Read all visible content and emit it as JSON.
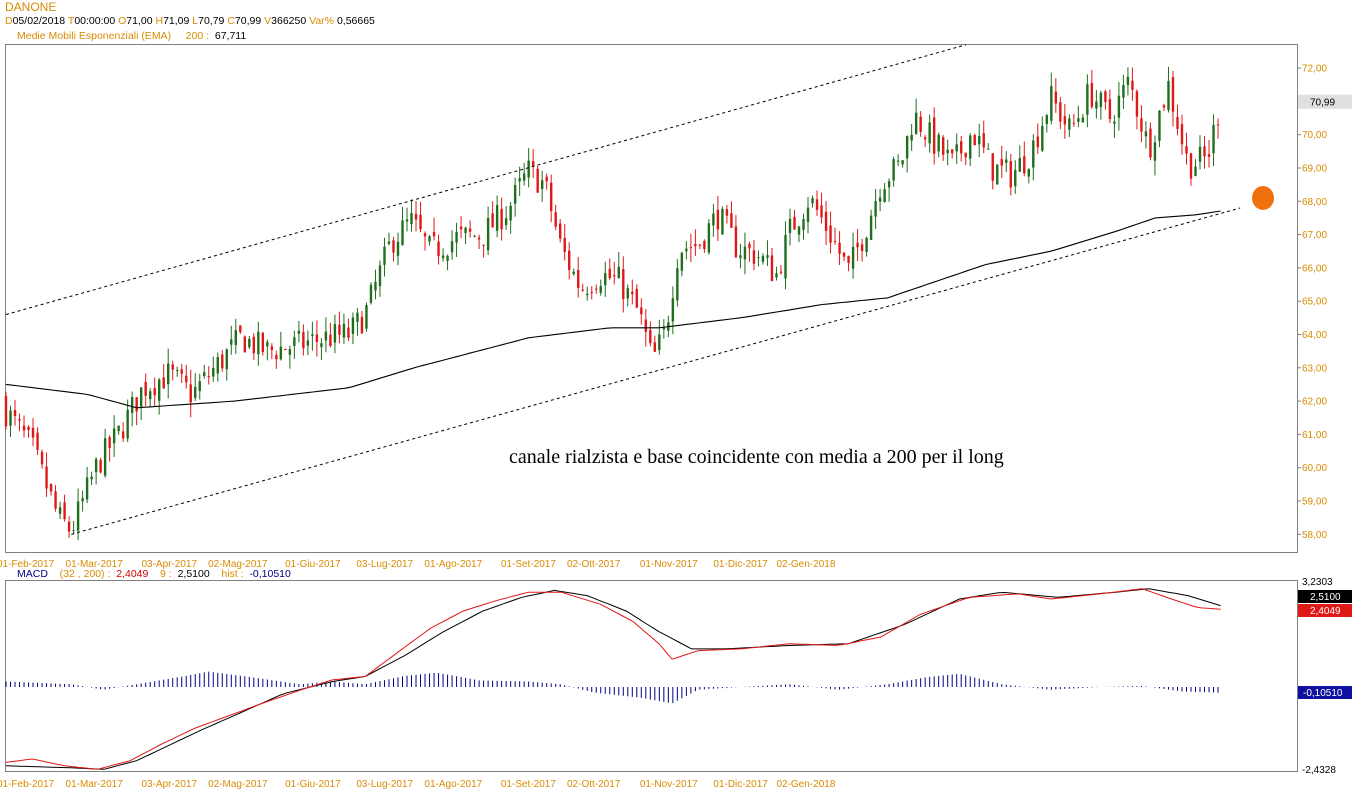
{
  "header": {
    "symbol": "DANONE",
    "ohlc": {
      "d_key": "D",
      "d_val": "05/02/2018",
      "t_key": "T",
      "t_val": "00:00:00",
      "o_key": "O",
      "o_val": "71,00",
      "h_key": "H",
      "h_val": "71,09",
      "l_key": "L",
      "l_val": "70,79",
      "c_key": "C",
      "c_val": "70,99",
      "v_key": "V",
      "v_val": "366250",
      "var_key": "Var%",
      "var_val": "0,56665"
    },
    "ema": {
      "label": "Medie Mobili Esponenziali (EMA)",
      "period": "200",
      "sep": ":",
      "value": "67,711"
    }
  },
  "macd_header": {
    "label": "MACD",
    "params": "(32 , 200)",
    "sep": ":",
    "macd_val": "2,4049",
    "signal_period": "9",
    "sep2": ":",
    "signal_val": "2,5100",
    "hist_label": "hist",
    "sep3": ":",
    "hist_val": "-0,10510"
  },
  "annotation": "canale rialzista e base coincidente con media a 200 per il long",
  "colors": {
    "up": "#1e6e1e",
    "down": "#e01818",
    "ema": "#000000",
    "channel": "#000000",
    "macd": "#e01818",
    "signal": "#000000",
    "hist": "#000080",
    "label_orange": "#d98b00",
    "marker": "#f07010"
  },
  "chart_data": [
    {
      "type": "candlestick",
      "title": "DANONE",
      "x_tick_labels": [
        "01-Feb-2017",
        "01-Mar-2017",
        "03-Apr-2017",
        "02-Mag-2017",
        "01-Giu-2017",
        "03-Lug-2017",
        "01-Ago-2017",
        "01-Set-2017",
        "02-Ott-2017",
        "01-Nov-2017",
        "01-Dic-2017",
        "02-Gen-2018"
      ],
      "y_ticks": [
        "72,00",
        "71,00",
        "70,00",
        "69,00",
        "68,00",
        "67,00",
        "66,00",
        "65,00",
        "64,00",
        "63,00",
        "62,00",
        "61,00",
        "60,00",
        "59,00",
        "58,00"
      ],
      "ylim": [
        57.6,
        72.8
      ],
      "last_price_label": "70,99",
      "closes_anchor": [
        {
          "day": 0,
          "close": 61.7
        },
        {
          "day": 8,
          "close": 60.6
        },
        {
          "day": 16,
          "close": 58.5
        },
        {
          "day": 20,
          "close": 58.1
        },
        {
          "day": 28,
          "close": 60.1
        },
        {
          "day": 35,
          "close": 61.1
        },
        {
          "day": 42,
          "close": 62.4
        },
        {
          "day": 50,
          "close": 62.8
        },
        {
          "day": 57,
          "close": 62.2
        },
        {
          "day": 64,
          "close": 63.0
        },
        {
          "day": 72,
          "close": 63.9
        },
        {
          "day": 80,
          "close": 63.5
        },
        {
          "day": 90,
          "close": 63.7
        },
        {
          "day": 98,
          "close": 63.9
        },
        {
          "day": 105,
          "close": 64.0
        },
        {
          "day": 110,
          "close": 64.6
        },
        {
          "day": 118,
          "close": 66.8
        },
        {
          "day": 124,
          "close": 67.4
        },
        {
          "day": 130,
          "close": 66.5
        },
        {
          "day": 138,
          "close": 66.9
        },
        {
          "day": 146,
          "close": 67.0
        },
        {
          "day": 154,
          "close": 67.8
        },
        {
          "day": 160,
          "close": 68.9
        },
        {
          "day": 165,
          "close": 68.5
        },
        {
          "day": 170,
          "close": 66.6
        },
        {
          "day": 176,
          "close": 65.4
        },
        {
          "day": 182,
          "close": 65.8
        },
        {
          "day": 188,
          "close": 65.6
        },
        {
          "day": 194,
          "close": 64.6
        },
        {
          "day": 198,
          "close": 63.2
        },
        {
          "day": 202,
          "close": 64.1
        },
        {
          "day": 206,
          "close": 66.6
        },
        {
          "day": 212,
          "close": 66.7
        },
        {
          "day": 218,
          "close": 67.6
        },
        {
          "day": 224,
          "close": 66.6
        },
        {
          "day": 230,
          "close": 66.4
        },
        {
          "day": 236,
          "close": 65.8
        },
        {
          "day": 240,
          "close": 67.1
        },
        {
          "day": 246,
          "close": 68.1
        },
        {
          "day": 252,
          "close": 67.1
        },
        {
          "day": 258,
          "close": 65.9
        },
        {
          "day": 263,
          "close": 67.1
        },
        {
          "day": 268,
          "close": 68.6
        },
        {
          "day": 274,
          "close": 69.1
        },
        {
          "day": 278,
          "close": 70.6
        },
        {
          "day": 284,
          "close": 69.8
        },
        {
          "day": 290,
          "close": 69.1
        },
        {
          "day": 296,
          "close": 70.1
        },
        {
          "day": 302,
          "close": 69.0
        },
        {
          "day": 308,
          "close": 68.8
        },
        {
          "day": 314,
          "close": 69.5
        },
        {
          "day": 320,
          "close": 71.1
        },
        {
          "day": 326,
          "close": 70.1
        },
        {
          "day": 332,
          "close": 71.3
        },
        {
          "day": 338,
          "close": 70.5
        },
        {
          "day": 344,
          "close": 71.6
        },
        {
          "day": 350,
          "close": 69.6
        },
        {
          "day": 356,
          "close": 71.5
        },
        {
          "day": 362,
          "close": 69.1
        },
        {
          "day": 368,
          "close": 69.3
        },
        {
          "day": 372,
          "close": 70.99
        }
      ],
      "ema200": [
        {
          "day": 0,
          "value": 62.5
        },
        {
          "day": 25,
          "value": 62.2
        },
        {
          "day": 40,
          "value": 61.8
        },
        {
          "day": 70,
          "value": 62.0
        },
        {
          "day": 105,
          "value": 62.4
        },
        {
          "day": 125,
          "value": 63.0
        },
        {
          "day": 160,
          "value": 63.9
        },
        {
          "day": 185,
          "value": 64.2
        },
        {
          "day": 200,
          "value": 64.2
        },
        {
          "day": 225,
          "value": 64.5
        },
        {
          "day": 250,
          "value": 64.9
        },
        {
          "day": 270,
          "value": 65.1
        },
        {
          "day": 285,
          "value": 65.6
        },
        {
          "day": 300,
          "value": 66.1
        },
        {
          "day": 320,
          "value": 66.5
        },
        {
          "day": 340,
          "value": 67.1
        },
        {
          "day": 352,
          "value": 67.5
        },
        {
          "day": 365,
          "value": 67.6
        },
        {
          "day": 372,
          "value": 67.71
        }
      ],
      "channel_upper": [
        {
          "day": 0,
          "value": 64.6
        },
        {
          "day": 294,
          "value": 72.7
        }
      ],
      "channel_lower": [
        {
          "day": 20,
          "value": 58.0
        },
        {
          "day": 378,
          "value": 67.8
        }
      ],
      "marker": {
        "day": 385,
        "value": 68.1
      }
    },
    {
      "type": "line",
      "title": "MACD",
      "y_ticks": [
        "3,2303",
        "-2,4328"
      ],
      "ylim": [
        -2.4328,
        3.2303
      ],
      "macd_last_label": "2,4049",
      "signal_last_label": "2,5100",
      "hist_last_label": "-0,10510",
      "macd": [
        {
          "day": 0,
          "value": -2.05
        },
        {
          "day": 8,
          "value": -1.95
        },
        {
          "day": 18,
          "value": -2.15
        },
        {
          "day": 28,
          "value": -2.25
        },
        {
          "day": 38,
          "value": -2.0
        },
        {
          "day": 48,
          "value": -1.5
        },
        {
          "day": 58,
          "value": -1.05
        },
        {
          "day": 68,
          "value": -0.7
        },
        {
          "day": 78,
          "value": -0.35
        },
        {
          "day": 90,
          "value": 0.05
        },
        {
          "day": 100,
          "value": 0.35
        },
        {
          "day": 110,
          "value": 0.45
        },
        {
          "day": 120,
          "value": 1.15
        },
        {
          "day": 130,
          "value": 1.85
        },
        {
          "day": 140,
          "value": 2.35
        },
        {
          "day": 150,
          "value": 2.65
        },
        {
          "day": 160,
          "value": 2.9
        },
        {
          "day": 170,
          "value": 2.9
        },
        {
          "day": 182,
          "value": 2.55
        },
        {
          "day": 192,
          "value": 2.05
        },
        {
          "day": 200,
          "value": 1.4
        },
        {
          "day": 204,
          "value": 0.95
        },
        {
          "day": 212,
          "value": 1.2
        },
        {
          "day": 225,
          "value": 1.25
        },
        {
          "day": 240,
          "value": 1.4
        },
        {
          "day": 255,
          "value": 1.35
        },
        {
          "day": 268,
          "value": 1.6
        },
        {
          "day": 280,
          "value": 2.25
        },
        {
          "day": 295,
          "value": 2.75
        },
        {
          "day": 310,
          "value": 2.85
        },
        {
          "day": 320,
          "value": 2.7
        },
        {
          "day": 335,
          "value": 2.85
        },
        {
          "day": 348,
          "value": 3.0
        },
        {
          "day": 357,
          "value": 2.7
        },
        {
          "day": 365,
          "value": 2.45
        },
        {
          "day": 372,
          "value": 2.4049
        }
      ],
      "signal": [
        {
          "day": 0,
          "value": -2.15
        },
        {
          "day": 18,
          "value": -2.2
        },
        {
          "day": 30,
          "value": -2.25
        },
        {
          "day": 40,
          "value": -2.0
        },
        {
          "day": 50,
          "value": -1.55
        },
        {
          "day": 60,
          "value": -1.1
        },
        {
          "day": 72,
          "value": -0.6
        },
        {
          "day": 85,
          "value": -0.05
        },
        {
          "day": 100,
          "value": 0.3
        },
        {
          "day": 110,
          "value": 0.45
        },
        {
          "day": 122,
          "value": 1.05
        },
        {
          "day": 134,
          "value": 1.75
        },
        {
          "day": 146,
          "value": 2.35
        },
        {
          "day": 158,
          "value": 2.75
        },
        {
          "day": 168,
          "value": 2.95
        },
        {
          "day": 178,
          "value": 2.8
        },
        {
          "day": 190,
          "value": 2.35
        },
        {
          "day": 200,
          "value": 1.75
        },
        {
          "day": 210,
          "value": 1.25
        },
        {
          "day": 220,
          "value": 1.25
        },
        {
          "day": 240,
          "value": 1.35
        },
        {
          "day": 258,
          "value": 1.4
        },
        {
          "day": 275,
          "value": 1.95
        },
        {
          "day": 292,
          "value": 2.7
        },
        {
          "day": 305,
          "value": 2.9
        },
        {
          "day": 322,
          "value": 2.75
        },
        {
          "day": 340,
          "value": 2.9
        },
        {
          "day": 350,
          "value": 3.0
        },
        {
          "day": 362,
          "value": 2.8
        },
        {
          "day": 372,
          "value": 2.51
        }
      ],
      "histogram": [
        {
          "day": 0,
          "value": 0.1
        },
        {
          "day": 20,
          "value": 0.05
        },
        {
          "day": 30,
          "value": -0.05
        },
        {
          "day": 45,
          "value": 0.1
        },
        {
          "day": 55,
          "value": 0.2
        },
        {
          "day": 62,
          "value": 0.28
        },
        {
          "day": 75,
          "value": 0.18
        },
        {
          "day": 90,
          "value": 0.05
        },
        {
          "day": 100,
          "value": 0.1
        },
        {
          "day": 110,
          "value": 0.05
        },
        {
          "day": 122,
          "value": 0.2
        },
        {
          "day": 132,
          "value": 0.26
        },
        {
          "day": 145,
          "value": 0.12
        },
        {
          "day": 160,
          "value": 0.1
        },
        {
          "day": 170,
          "value": 0.05
        },
        {
          "day": 180,
          "value": -0.1
        },
        {
          "day": 195,
          "value": -0.2
        },
        {
          "day": 204,
          "value": -0.3
        },
        {
          "day": 212,
          "value": -0.05
        },
        {
          "day": 225,
          "value": 0.0
        },
        {
          "day": 240,
          "value": 0.05
        },
        {
          "day": 255,
          "value": -0.05
        },
        {
          "day": 270,
          "value": 0.05
        },
        {
          "day": 282,
          "value": 0.18
        },
        {
          "day": 292,
          "value": 0.24
        },
        {
          "day": 305,
          "value": 0.05
        },
        {
          "day": 320,
          "value": -0.05
        },
        {
          "day": 335,
          "value": 0.0
        },
        {
          "day": 348,
          "value": 0.02
        },
        {
          "day": 360,
          "value": -0.08
        },
        {
          "day": 372,
          "value": -0.1051
        }
      ]
    }
  ]
}
